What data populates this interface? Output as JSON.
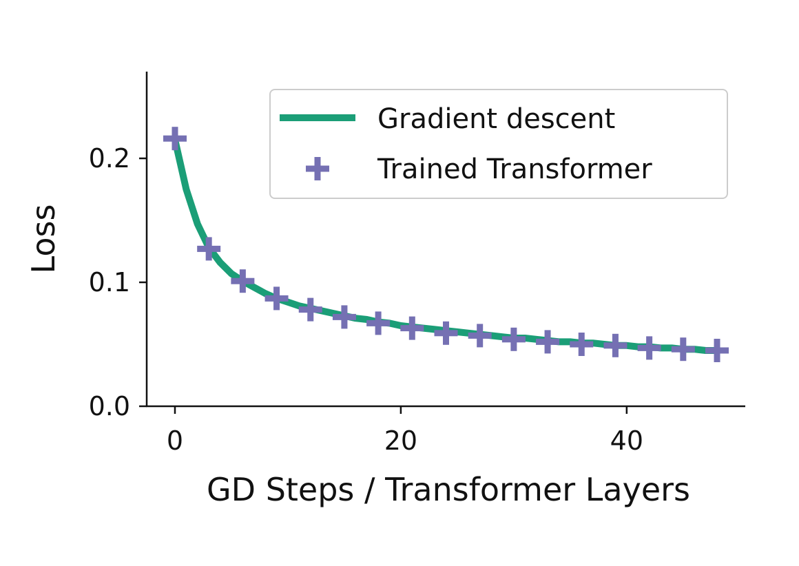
{
  "chart_data": {
    "type": "line",
    "title": "",
    "xlabel": "GD Steps / Transformer Layers",
    "ylabel": "Loss",
    "xlim": [
      -2.5,
      50.5
    ],
    "ylim": [
      0.0,
      0.27
    ],
    "x_ticks": [
      0,
      20,
      40
    ],
    "x_tick_labels": [
      "0",
      "20",
      "40"
    ],
    "y_ticks": [
      0.0,
      0.1,
      0.2
    ],
    "y_tick_labels": [
      "0.0",
      "0.1",
      "0.2"
    ],
    "grid": false,
    "legend_position": "top-right",
    "series": [
      {
        "name": "Gradient descent",
        "style": "line",
        "color": "#1b9e77",
        "x": [
          0,
          1,
          2,
          3,
          4,
          5,
          6,
          7,
          8,
          9,
          10,
          11,
          12,
          13,
          14,
          15,
          16,
          17,
          18,
          19,
          20,
          21,
          22,
          23,
          24,
          25,
          26,
          27,
          28,
          29,
          30,
          31,
          32,
          33,
          34,
          35,
          36,
          37,
          38,
          39,
          40,
          41,
          42,
          43,
          44,
          45,
          46,
          47,
          48
        ],
        "values": [
          0.215,
          0.175,
          0.147,
          0.128,
          0.116,
          0.107,
          0.101,
          0.096,
          0.091,
          0.087,
          0.084,
          0.081,
          0.079,
          0.077,
          0.075,
          0.073,
          0.071,
          0.07,
          0.068,
          0.067,
          0.065,
          0.064,
          0.063,
          0.062,
          0.061,
          0.06,
          0.059,
          0.058,
          0.057,
          0.056,
          0.055,
          0.055,
          0.054,
          0.053,
          0.052,
          0.052,
          0.051,
          0.051,
          0.05,
          0.049,
          0.049,
          0.048,
          0.048,
          0.047,
          0.047,
          0.046,
          0.046,
          0.045,
          0.045
        ]
      },
      {
        "name": "Trained Transformer",
        "style": "marker-plus",
        "color": "#7570b3",
        "x": [
          0,
          3,
          6,
          9,
          12,
          15,
          18,
          21,
          24,
          27,
          30,
          33,
          36,
          39,
          42,
          45,
          48
        ],
        "values": [
          0.216,
          0.127,
          0.101,
          0.087,
          0.078,
          0.072,
          0.067,
          0.063,
          0.059,
          0.057,
          0.054,
          0.052,
          0.05,
          0.049,
          0.047,
          0.046,
          0.045
        ]
      }
    ]
  }
}
